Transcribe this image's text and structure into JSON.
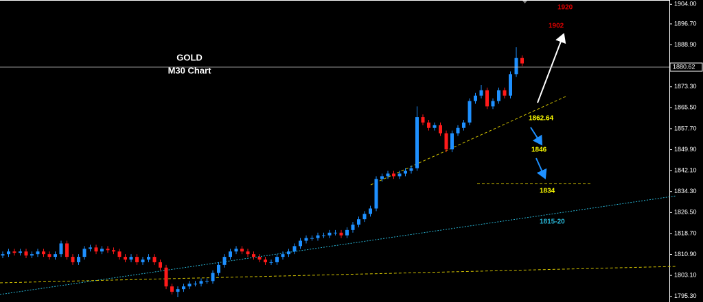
{
  "chart_data": {
    "type": "candlestick",
    "title": "GOLD",
    "subtitle": "M30 Chart",
    "up_color": "#1e90ff",
    "down_color": "#ff1a1a",
    "ylim": [
      1793.2,
      1905.6
    ],
    "yticks": [
      {
        "value": 1904.0,
        "label": "1904.00"
      },
      {
        "value": 1896.7,
        "label": "1896.70"
      },
      {
        "value": 1888.9,
        "label": "1888.90"
      },
      {
        "value": 1873.3,
        "label": "1873.30"
      },
      {
        "value": 1865.5,
        "label": "1865.50"
      },
      {
        "value": 1857.7,
        "label": "1857.70"
      },
      {
        "value": 1849.9,
        "label": "1849.90"
      },
      {
        "value": 1842.1,
        "label": "1842.10"
      },
      {
        "value": 1834.3,
        "label": "1834.30"
      },
      {
        "value": 1826.5,
        "label": "1826.50"
      },
      {
        "value": 1818.7,
        "label": "1818.70"
      },
      {
        "value": 1810.9,
        "label": "1810.90"
      },
      {
        "value": 1803.1,
        "label": "1803.10"
      },
      {
        "value": 1795.3,
        "label": "1795.30"
      }
    ],
    "current_price": {
      "value": 1880.62,
      "label": "1880.62"
    },
    "annotations": [
      "1920",
      "1902",
      "1862.64",
      "1846",
      "1834",
      "1815-20"
    ],
    "open": [
      1810.5,
      1811,
      1812,
      1811.5,
      1812,
      1810.5,
      1811,
      1812,
      1811,
      1810,
      1811,
      1815,
      1810,
      1808,
      1810,
      1813,
      1813.5,
      1812,
      1813,
      1812.5,
      1812,
      1810,
      1809,
      1810,
      1808,
      1809,
      1810,
      1808,
      1806,
      1799,
      1797,
      1798,
      1799,
      1800,
      1800,
      1801,
      1801,
      1804,
      1807,
      1810,
      1812,
      1813,
      1812,
      1811,
      1810,
      1809,
      1808,
      1808,
      1810,
      1811,
      1812,
      1814,
      1816,
      1817,
      1817,
      1818,
      1818,
      1819,
      1819,
      1818,
      1820,
      1822,
      1824,
      1826,
      1828,
      1839,
      1840,
      1841,
      1840,
      1841,
      1842,
      1843,
      1862,
      1860,
      1858,
      1859,
      1856,
      1850,
      1856,
      1858,
      1860,
      1868,
      1870,
      1872,
      1866,
      1868,
      1872,
      1870,
      1878,
      1884
    ],
    "high": [
      1812,
      1813,
      1813,
      1813,
      1813,
      1812,
      1813,
      1813,
      1812,
      1812,
      1816,
      1816,
      1811,
      1811,
      1814,
      1814.5,
      1814.5,
      1814,
      1814,
      1813.5,
      1813,
      1811,
      1811,
      1811,
      1810,
      1811,
      1811,
      1809,
      1807,
      1800,
      1799,
      1800,
      1801,
      1801,
      1802,
      1802,
      1805,
      1808,
      1811,
      1813,
      1814,
      1814,
      1813,
      1812,
      1811,
      1810,
      1809,
      1811,
      1812,
      1813,
      1815,
      1817,
      1818,
      1818,
      1819,
      1819,
      1820,
      1820,
      1820,
      1821,
      1823,
      1825,
      1827,
      1829,
      1840,
      1841,
      1842,
      1842,
      1842,
      1843,
      1844,
      1866,
      1863,
      1861,
      1860,
      1860,
      1857,
      1857,
      1859,
      1861,
      1869,
      1871,
      1874,
      1873,
      1869,
      1873,
      1873,
      1879,
      1888,
      1885
    ],
    "low": [
      1809.5,
      1810,
      1810.5,
      1810.5,
      1809.5,
      1809.5,
      1810,
      1810,
      1809,
      1809,
      1810,
      1809,
      1807,
      1807,
      1809,
      1812,
      1811,
      1811,
      1811.5,
      1811,
      1809,
      1808,
      1808,
      1807,
      1807,
      1808,
      1807,
      1805,
      1798,
      1796,
      1795,
      1797,
      1798,
      1799,
      1799,
      1800,
      1800,
      1803,
      1806,
      1809,
      1811,
      1811,
      1810,
      1809,
      1808,
      1807,
      1807,
      1807,
      1809,
      1810,
      1811,
      1813,
      1815,
      1816,
      1816,
      1817,
      1817,
      1818,
      1817,
      1817,
      1819,
      1821,
      1823,
      1825,
      1827,
      1838,
      1839,
      1839,
      1839,
      1840,
      1841,
      1842,
      1859,
      1857,
      1857,
      1855,
      1849,
      1849,
      1855,
      1857,
      1859,
      1867,
      1869,
      1865,
      1865,
      1867,
      1869,
      1869,
      1877,
      1881
    ],
    "close": [
      1811,
      1812,
      1811.5,
      1812,
      1810.5,
      1811,
      1812,
      1811,
      1810,
      1811,
      1815,
      1810,
      1808,
      1810,
      1813,
      1813.5,
      1812,
      1813,
      1812.5,
      1812,
      1810,
      1809,
      1810,
      1808,
      1809,
      1810,
      1808,
      1806,
      1799,
      1797,
      1798,
      1799,
      1800,
      1800,
      1801,
      1801,
      1804,
      1807,
      1810,
      1812,
      1813,
      1812,
      1811,
      1810,
      1809,
      1808,
      1808,
      1810,
      1811,
      1812,
      1814,
      1816,
      1817,
      1817,
      1818,
      1818,
      1819,
      1819,
      1818,
      1820,
      1822,
      1824,
      1826,
      1828,
      1839,
      1840,
      1841,
      1840,
      1841,
      1842,
      1843,
      1862,
      1860,
      1858,
      1859,
      1856,
      1850,
      1856,
      1858,
      1860,
      1868,
      1870,
      1872,
      1866,
      1868,
      1872,
      1870,
      1878,
      1884,
      1882
    ]
  }
}
